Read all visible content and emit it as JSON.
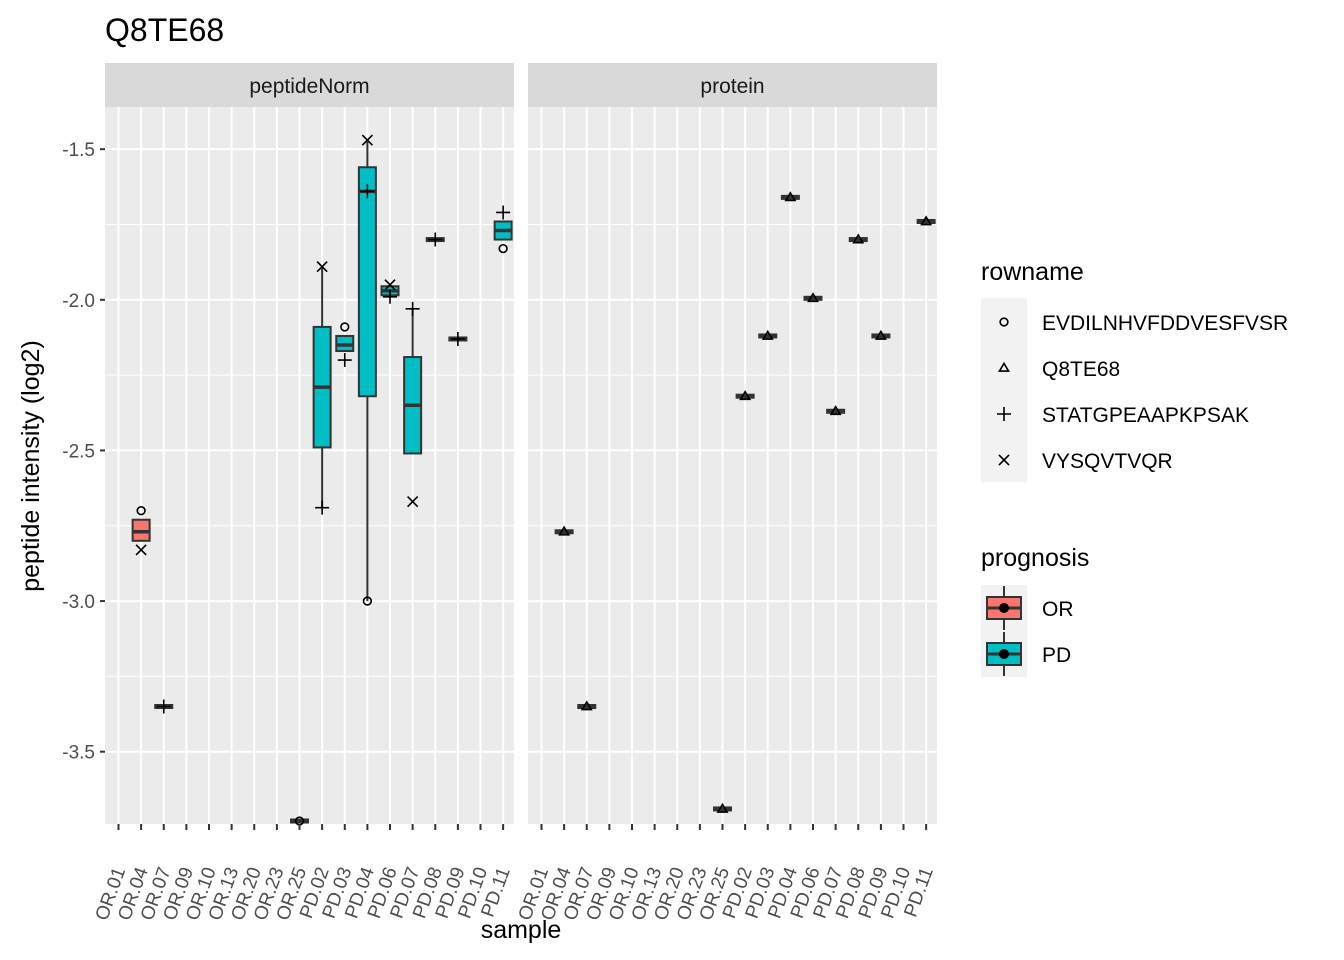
{
  "chart_data": {
    "type": "box",
    "title": "Q8TE68",
    "xlabel": "sample",
    "ylabel": "peptide intensity (log2)",
    "ylim": [
      -3.74,
      -1.36
    ],
    "yticks": [
      -1.5,
      -2.0,
      -2.5,
      -3.0,
      -3.5
    ],
    "ytick_labels": [
      "-1.5",
      "-2.0",
      "-2.5",
      "-3.0",
      "-3.5"
    ],
    "categories": [
      "OR.01",
      "OR.04",
      "OR.07",
      "OR.09",
      "OR.10",
      "OR.13",
      "OR.20",
      "OR.23",
      "OR.25",
      "PD.02",
      "PD.03",
      "PD.04",
      "PD.06",
      "PD.07",
      "PD.08",
      "PD.09",
      "PD.10",
      "PD.11"
    ],
    "facets": [
      "peptideNorm",
      "protein"
    ],
    "colors": {
      "OR": "#F8766D",
      "PD": "#00BFC4",
      "panel": "#EBEBEB",
      "strip": "#D9D9D9",
      "grid": "#FFFFFF"
    },
    "legend_rowname": {
      "title": "rowname",
      "items": [
        {
          "label": "EVDILNHVFDDVESFVSR",
          "shape": "circle"
        },
        {
          "label": "Q8TE68",
          "shape": "triangle"
        },
        {
          "label": "STATGPEAAPKPSAK",
          "shape": "plus"
        },
        {
          "label": "VYSQVTVQR",
          "shape": "cross"
        }
      ]
    },
    "legend_prognosis": {
      "title": "prognosis",
      "items": [
        {
          "label": "OR",
          "color": "#F8766D"
        },
        {
          "label": "PD",
          "color": "#00BFC4"
        }
      ]
    },
    "panels": [
      {
        "name": "peptideNorm",
        "boxes": [
          {
            "sample": "OR.04",
            "group": "OR",
            "q1": -2.8,
            "median": -2.77,
            "q3": -2.73,
            "lo": -2.8,
            "hi": -2.73
          },
          {
            "sample": "OR.07",
            "group": "OR",
            "q1": -3.355,
            "median": -3.35,
            "q3": -3.345,
            "lo": -3.355,
            "hi": -3.345
          },
          {
            "sample": "OR.25",
            "group": "OR",
            "q1": -3.735,
            "median": -3.73,
            "q3": -3.725,
            "lo": -3.735,
            "hi": -3.725
          },
          {
            "sample": "PD.02",
            "group": "PD",
            "q1": -2.49,
            "median": -2.29,
            "q3": -2.09,
            "lo": -2.69,
            "hi": -1.89
          },
          {
            "sample": "PD.03",
            "group": "PD",
            "q1": -2.17,
            "median": -2.15,
            "q3": -2.12,
            "lo": -2.17,
            "hi": -2.12
          },
          {
            "sample": "PD.04",
            "group": "PD",
            "q1": -2.32,
            "median": -1.64,
            "q3": -1.56,
            "lo": -3.0,
            "hi": -1.47
          },
          {
            "sample": "PD.06",
            "group": "PD",
            "q1": -1.985,
            "median": -1.97,
            "q3": -1.955,
            "lo": -1.985,
            "hi": -1.955
          },
          {
            "sample": "PD.07",
            "group": "PD",
            "q1": -2.51,
            "median": -2.35,
            "q3": -2.19,
            "lo": -2.51,
            "hi": -2.03
          },
          {
            "sample": "PD.08",
            "group": "PD",
            "q1": -1.805,
            "median": -1.8,
            "q3": -1.795,
            "lo": -1.805,
            "hi": -1.795
          },
          {
            "sample": "PD.09",
            "group": "PD",
            "q1": -2.135,
            "median": -2.13,
            "q3": -2.125,
            "lo": -2.135,
            "hi": -2.125
          },
          {
            "sample": "PD.11",
            "group": "PD",
            "q1": -1.8,
            "median": -1.77,
            "q3": -1.74,
            "lo": -1.8,
            "hi": -1.74
          }
        ],
        "points": [
          {
            "sample": "OR.04",
            "shape": "circle",
            "y": -2.7
          },
          {
            "sample": "OR.04",
            "shape": "cross",
            "y": -2.83
          },
          {
            "sample": "OR.07",
            "shape": "plus",
            "y": -3.35
          },
          {
            "sample": "OR.25",
            "shape": "circle",
            "y": -3.73
          },
          {
            "sample": "PD.02",
            "shape": "cross",
            "y": -1.89
          },
          {
            "sample": "PD.02",
            "shape": "plus",
            "y": -2.69
          },
          {
            "sample": "PD.03",
            "shape": "circle",
            "y": -2.09
          },
          {
            "sample": "PD.03",
            "shape": "plus",
            "y": -2.2
          },
          {
            "sample": "PD.04",
            "shape": "cross",
            "y": -1.47
          },
          {
            "sample": "PD.04",
            "shape": "plus",
            "y": -1.64
          },
          {
            "sample": "PD.04",
            "shape": "circle",
            "y": -3.0
          },
          {
            "sample": "PD.06",
            "shape": "cross",
            "y": -1.95
          },
          {
            "sample": "PD.06",
            "shape": "plus",
            "y": -1.99
          },
          {
            "sample": "PD.07",
            "shape": "plus",
            "y": -2.03
          },
          {
            "sample": "PD.07",
            "shape": "cross",
            "y": -2.67
          },
          {
            "sample": "PD.08",
            "shape": "plus",
            "y": -1.8
          },
          {
            "sample": "PD.09",
            "shape": "plus",
            "y": -2.13
          },
          {
            "sample": "PD.11",
            "shape": "plus",
            "y": -1.71
          },
          {
            "sample": "PD.11",
            "shape": "circle",
            "y": -1.83
          }
        ]
      },
      {
        "name": "protein",
        "boxes": [
          {
            "sample": "OR.04",
            "group": "OR",
            "q1": -2.775,
            "median": -2.77,
            "q3": -2.765,
            "lo": -2.775,
            "hi": -2.765
          },
          {
            "sample": "OR.07",
            "group": "OR",
            "q1": -3.355,
            "median": -3.35,
            "q3": -3.345,
            "lo": -3.355,
            "hi": -3.345
          },
          {
            "sample": "OR.25",
            "group": "OR",
            "q1": -3.695,
            "median": -3.69,
            "q3": -3.685,
            "lo": -3.695,
            "hi": -3.685
          },
          {
            "sample": "PD.02",
            "group": "PD",
            "q1": -2.325,
            "median": -2.32,
            "q3": -2.315,
            "lo": -2.325,
            "hi": -2.315
          },
          {
            "sample": "PD.03",
            "group": "PD",
            "q1": -2.125,
            "median": -2.12,
            "q3": -2.115,
            "lo": -2.125,
            "hi": -2.115
          },
          {
            "sample": "PD.04",
            "group": "PD",
            "q1": -1.665,
            "median": -1.66,
            "q3": -1.655,
            "lo": -1.665,
            "hi": -1.655
          },
          {
            "sample": "PD.06",
            "group": "PD",
            "q1": -2.0,
            "median": -1.995,
            "q3": -1.99,
            "lo": -2.0,
            "hi": -1.99
          },
          {
            "sample": "PD.07",
            "group": "PD",
            "q1": -2.375,
            "median": -2.37,
            "q3": -2.365,
            "lo": -2.375,
            "hi": -2.365
          },
          {
            "sample": "PD.08",
            "group": "PD",
            "q1": -1.805,
            "median": -1.8,
            "q3": -1.795,
            "lo": -1.805,
            "hi": -1.795
          },
          {
            "sample": "PD.09",
            "group": "PD",
            "q1": -2.125,
            "median": -2.12,
            "q3": -2.115,
            "lo": -2.125,
            "hi": -2.115
          },
          {
            "sample": "PD.11",
            "group": "PD",
            "q1": -1.745,
            "median": -1.74,
            "q3": -1.735,
            "lo": -1.745,
            "hi": -1.735
          }
        ],
        "points": [
          {
            "sample": "OR.04",
            "shape": "triangle",
            "y": -2.77
          },
          {
            "sample": "OR.07",
            "shape": "triangle",
            "y": -3.35
          },
          {
            "sample": "OR.25",
            "shape": "triangle",
            "y": -3.69
          },
          {
            "sample": "PD.02",
            "shape": "triangle",
            "y": -2.32
          },
          {
            "sample": "PD.03",
            "shape": "triangle",
            "y": -2.12
          },
          {
            "sample": "PD.04",
            "shape": "triangle",
            "y": -1.66
          },
          {
            "sample": "PD.06",
            "shape": "triangle",
            "y": -1.995
          },
          {
            "sample": "PD.07",
            "shape": "triangle",
            "y": -2.37
          },
          {
            "sample": "PD.08",
            "shape": "triangle",
            "y": -1.8
          },
          {
            "sample": "PD.09",
            "shape": "triangle",
            "y": -2.12
          },
          {
            "sample": "PD.11",
            "shape": "triangle",
            "y": -1.74
          }
        ]
      }
    ]
  }
}
